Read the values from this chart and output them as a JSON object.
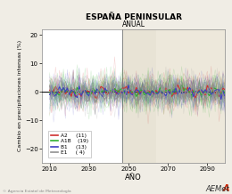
{
  "title": "ESPAÑA PENINSULAR",
  "subtitle": "ANUAL",
  "xlabel": "AÑO",
  "ylabel": "Cambio en precipitaciones intensas (%)",
  "xlim": [
    2006,
    2099
  ],
  "ylim": [
    -25,
    22
  ],
  "yticks": [
    -20,
    -10,
    0,
    10,
    20
  ],
  "xticks": [
    2010,
    2030,
    2050,
    2070,
    2090
  ],
  "shaded_region1": [
    2047,
    2064
  ],
  "shaded_region2": [
    2064,
    2099
  ],
  "vline_x": 2047,
  "background_color": "#f0ede5",
  "plot_bg_color": "#ffffff",
  "shade1_color": "#e8e3d5",
  "shade2_color": "#ede8db",
  "legend_entries": [
    {
      "label": "A2",
      "count": "(11)",
      "color": "#d03030"
    },
    {
      "label": "A1B",
      "count": "(19)",
      "color": "#30b030"
    },
    {
      "label": "B1",
      "count": "(13)",
      "color": "#4040c0"
    },
    {
      "label": "E1",
      "count": "( 4)",
      "color": "#909090"
    }
  ],
  "member_counts": [
    11,
    19,
    13,
    4
  ],
  "member_alpha": 0.2,
  "member_lw": 0.35,
  "mean_alpha": 1.0,
  "mean_lw": 0.8,
  "noise_std": 3.2,
  "seed": 42,
  "n_years": 90,
  "year_start": 2010
}
